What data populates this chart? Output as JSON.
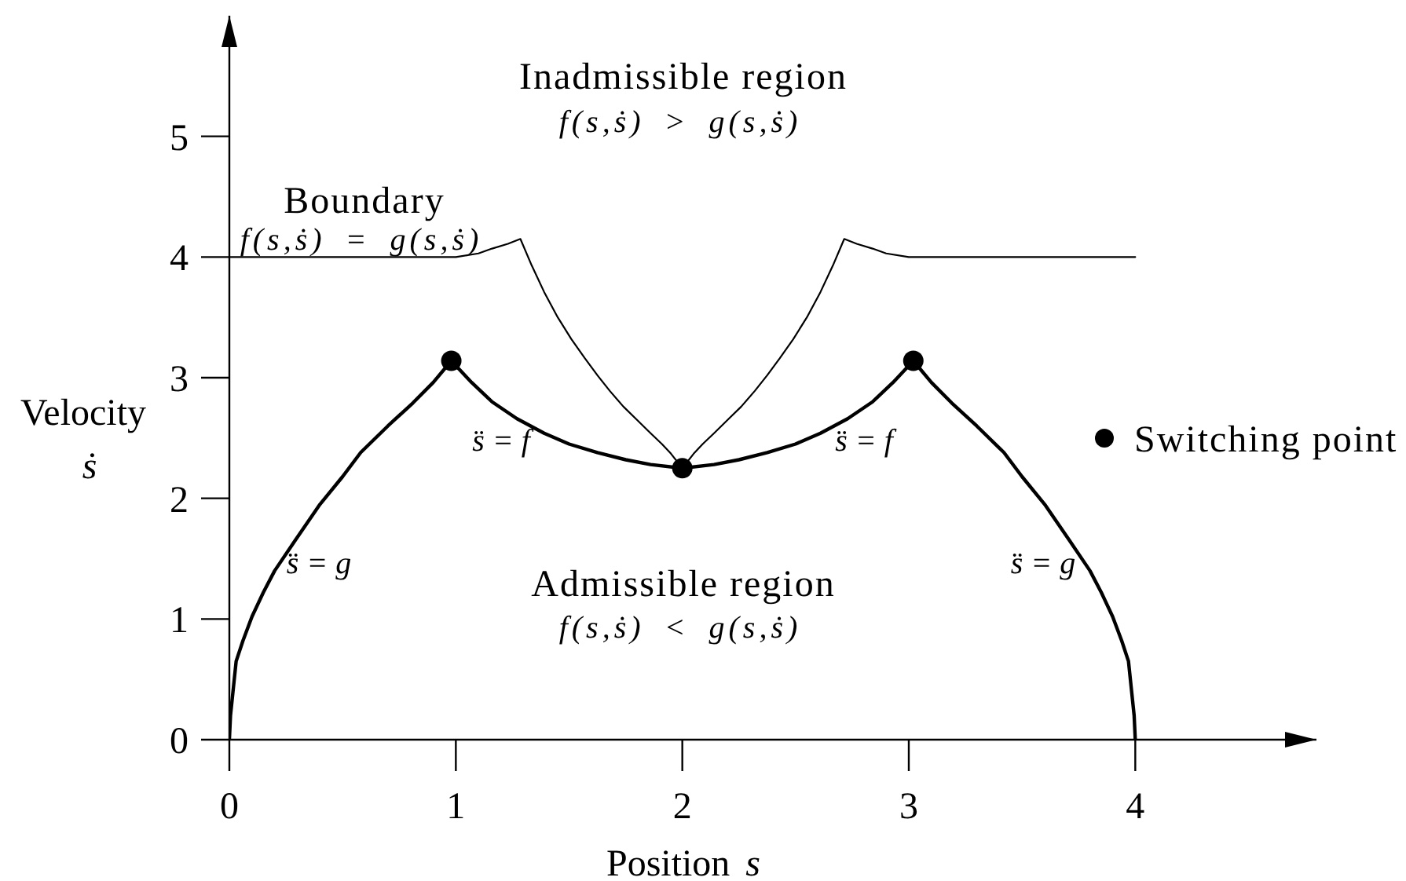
{
  "chart_data": {
    "type": "line",
    "xlabel": "Position s",
    "ylabel": "Velocity ṡ",
    "xlim": [
      0,
      4.8
    ],
    "ylim": [
      0,
      6
    ],
    "xticks": [
      0,
      1,
      2,
      3,
      4
    ],
    "yticks": [
      0,
      1,
      2,
      3,
      4,
      5
    ],
    "legend": "right",
    "series": [
      {
        "color": "#000000",
        "x": [
          0,
          0.005,
          0.015,
          0.03,
          0.06,
          0.1,
          0.15,
          0.2,
          0.29,
          0.4,
          0.5,
          0.58,
          0.7,
          0.81,
          0.9,
          0.98,
          1.07,
          1.16,
          1.27,
          1.39,
          1.5,
          1.625,
          1.75,
          1.86,
          2.0,
          2.14,
          2.25,
          2.375,
          2.5,
          2.61,
          2.73,
          2.84,
          2.93,
          3.02,
          3.1,
          3.19,
          3.3,
          3.42,
          3.5,
          3.6,
          3.71,
          3.8,
          3.85,
          3.9,
          3.94,
          3.97,
          3.985,
          3.995,
          4.0
        ],
        "values": [
          0,
          0.2,
          0.38,
          0.65,
          0.82,
          1.02,
          1.22,
          1.4,
          1.65,
          1.95,
          2.18,
          2.38,
          2.6,
          2.79,
          2.96,
          3.14,
          2.96,
          2.8,
          2.66,
          2.54,
          2.45,
          2.38,
          2.32,
          2.28,
          2.25,
          2.28,
          2.32,
          2.38,
          2.45,
          2.54,
          2.66,
          2.8,
          2.96,
          3.14,
          2.96,
          2.79,
          2.6,
          2.38,
          2.18,
          1.95,
          1.65,
          1.4,
          1.22,
          1.02,
          0.82,
          0.65,
          0.38,
          0.2,
          0
        ]
      },
      {
        "color": "#000000",
        "x": [
          0,
          1.0,
          1.1,
          1.16,
          1.23,
          1.285,
          1.335,
          1.39,
          1.45,
          1.51,
          1.57,
          1.625,
          1.68,
          1.74,
          1.8,
          1.86,
          1.91,
          1.95,
          2.0,
          2.05,
          2.09,
          2.14,
          2.2,
          2.26,
          2.32,
          2.375,
          2.43,
          2.49,
          2.55,
          2.61,
          2.665,
          2.715,
          2.77,
          2.84,
          2.9,
          3.0,
          4.0
        ],
        "values": [
          4,
          4,
          4.03,
          4.07,
          4.11,
          4.15,
          3.93,
          3.71,
          3.5,
          3.32,
          3.16,
          3.02,
          2.89,
          2.76,
          2.65,
          2.54,
          2.45,
          2.37,
          2.25,
          2.37,
          2.45,
          2.54,
          2.65,
          2.76,
          2.89,
          3.02,
          3.16,
          3.32,
          3.5,
          3.71,
          3.93,
          4.15,
          4.11,
          4.07,
          4.03,
          4,
          4
        ]
      },
      {
        "name": "Switching point",
        "type": "scatter",
        "marker": "circle",
        "color": "#000000",
        "x": [
          0.98,
          2.0,
          3.02
        ],
        "values": [
          3.14,
          2.25,
          3.14
        ]
      }
    ],
    "annotations": [
      "Inadmissible region",
      "f(s,ṡ) > g(s,ṡ)",
      "Admissible region",
      "f(s,ṡ) < g(s,ṡ)",
      "Boundary",
      "f(s,ṡ) = g(s,ṡ)",
      "s̈ = f",
      "s̈ = f",
      "s̈ = g",
      "s̈ = g"
    ]
  }
}
